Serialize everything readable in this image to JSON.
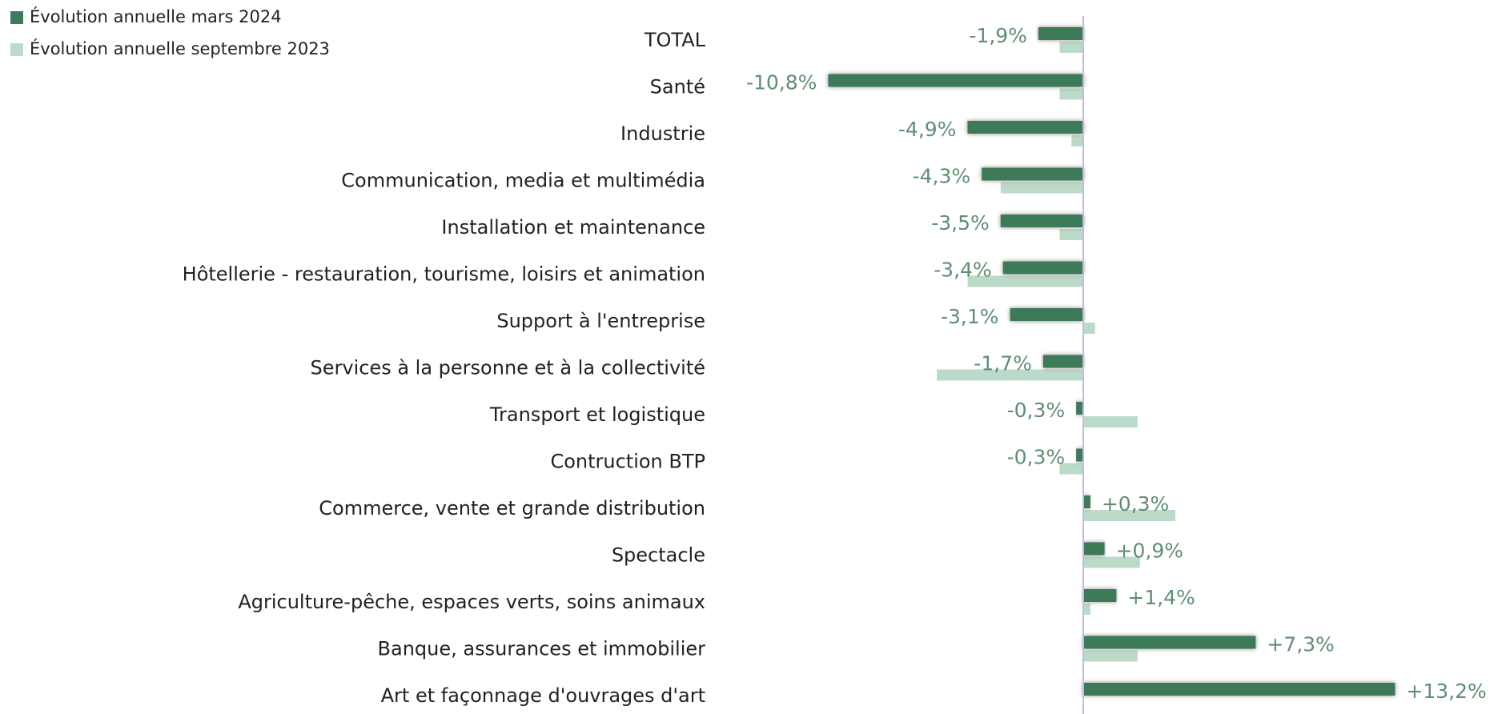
{
  "chart_data": {
    "type": "bar",
    "orientation": "horizontal",
    "categories": [
      "TOTAL",
      "Santé",
      "Industrie",
      "Communication, media et multimédia",
      "Installation et maintenance",
      "Hôtellerie - restauration, tourisme, loisirs et animation",
      "Support à l'entreprise",
      "Services à la personne et à la collectivité",
      "Transport et logistique",
      "Contruction BTP",
      "Commerce, vente et grande distribution",
      "Spectacle",
      "Agriculture-pêche, espaces verts, soins animaux",
      "Banque, assurances et immobilier",
      "Art  et façonnage d'ouvrages d'art"
    ],
    "series": [
      {
        "name": "Évolution annuelle mars 2024",
        "color": "#3e7a59",
        "values": [
          -1.9,
          -10.8,
          -4.9,
          -4.3,
          -3.5,
          -3.4,
          -3.1,
          -1.7,
          -0.3,
          -0.3,
          0.3,
          0.9,
          1.4,
          7.3,
          13.2
        ],
        "value_labels": [
          "-1,9%",
          "-10,8%",
          "-4,9%",
          "-4,3%",
          "-3,5%",
          "-3,4%",
          "-3,1%",
          "-1,7%",
          "-0,3%",
          "-0,3%",
          "+0,3%",
          "+0,9%",
          "+1,4%",
          "+7,3%",
          "+13,2%"
        ]
      },
      {
        "name": "Évolution annuelle septembre 2023",
        "color": "#bcdac8",
        "values": [
          -1.0,
          -1.0,
          -0.5,
          -3.5,
          -1.0,
          -4.9,
          0.5,
          -6.2,
          2.3,
          -1.0,
          3.9,
          2.4,
          0.3,
          2.3,
          0
        ]
      }
    ],
    "xlim": [
      -11.5,
      17
    ],
    "legend": "top-left"
  }
}
